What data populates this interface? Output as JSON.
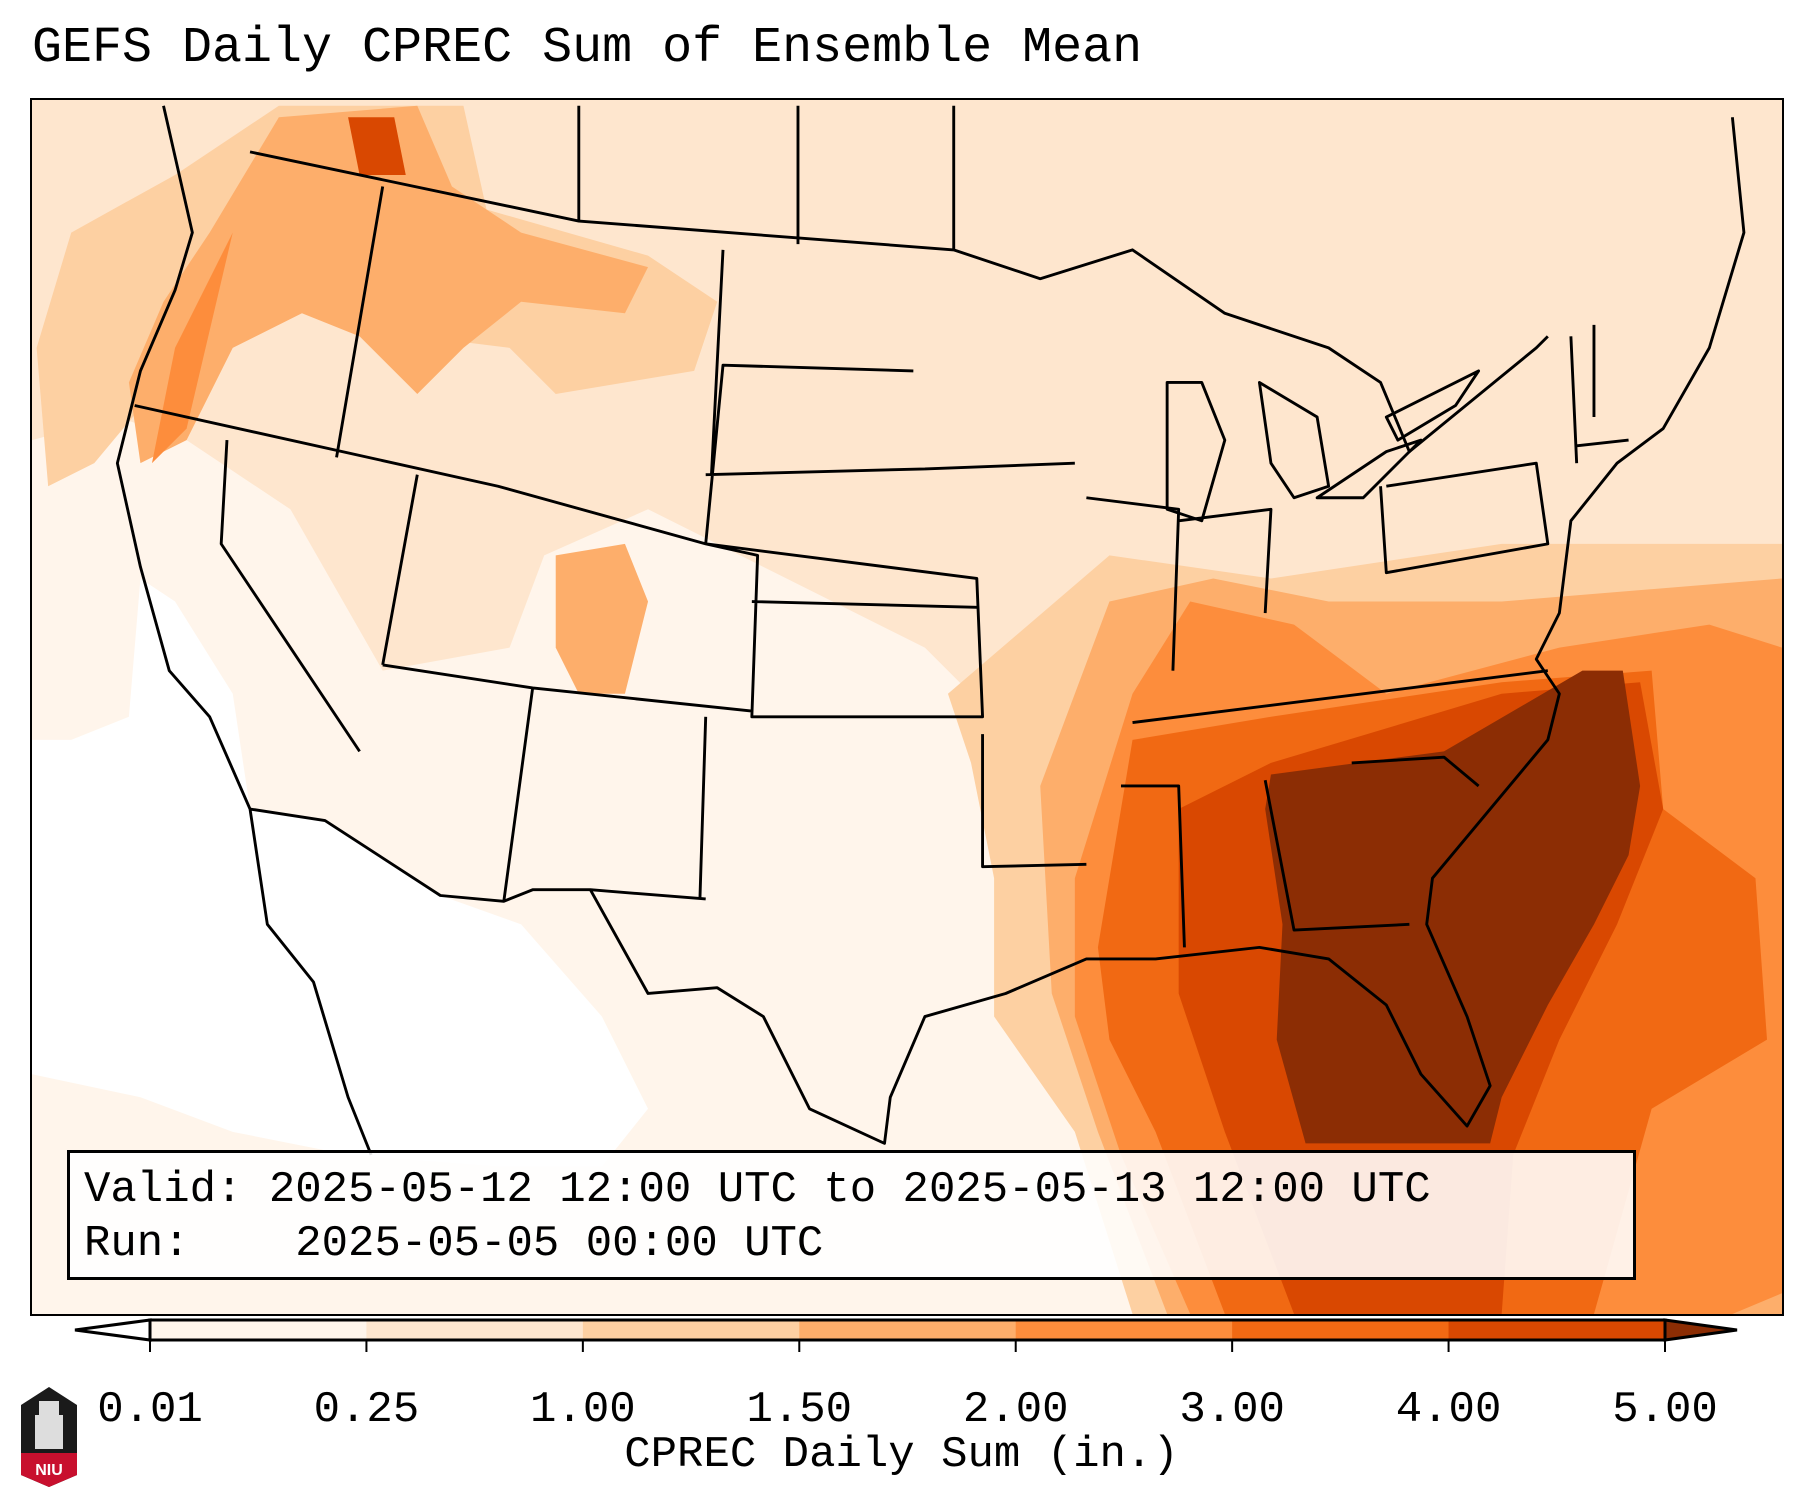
{
  "title": "GEFS Daily CPREC Sum of Ensemble Mean",
  "info": {
    "valid_label": "Valid:",
    "valid_value": "2025-05-12 12:00 UTC to 2025-05-13 12:00 UTC",
    "run_label": "Run:",
    "run_value": "2025-05-05 00:00 UTC"
  },
  "colorbar": {
    "label": "CPREC Daily Sum (in.)",
    "ticks": [
      "0.01",
      "0.25",
      "1.00",
      "1.50",
      "2.00",
      "3.00",
      "4.00",
      "5.00"
    ],
    "colors": [
      "#fff5eb",
      "#fee6ce",
      "#fdd0a2",
      "#fdae6b",
      "#fd8d3c",
      "#f16913",
      "#d94801",
      "#8c2d04"
    ],
    "under_color": "#ffffff",
    "over_color": "#8c2d04"
  },
  "logo": {
    "text": "NIU"
  }
}
